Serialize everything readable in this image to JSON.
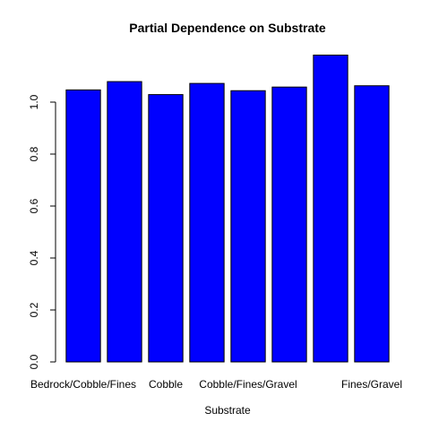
{
  "chart_data": {
    "type": "bar",
    "title": "Partial Dependence on Substrate",
    "xlabel": "Substrate",
    "ylabel": "",
    "categories": [
      "Bedrock/Cobble/Fines",
      "",
      "Cobble",
      "",
      "Cobble/Fines/Gravel",
      "",
      "",
      "Fines/Gravel"
    ],
    "values": [
      1.047,
      1.079,
      1.029,
      1.072,
      1.044,
      1.058,
      1.181,
      1.063
    ],
    "yticks": [
      "0.0",
      "0.2",
      "0.4",
      "0.6",
      "0.8",
      "1.0"
    ],
    "ylim": [
      0,
      1.22
    ],
    "bar_color": "#0000ff",
    "bar_border_color": "#000000",
    "grid": false,
    "legend": "none"
  }
}
